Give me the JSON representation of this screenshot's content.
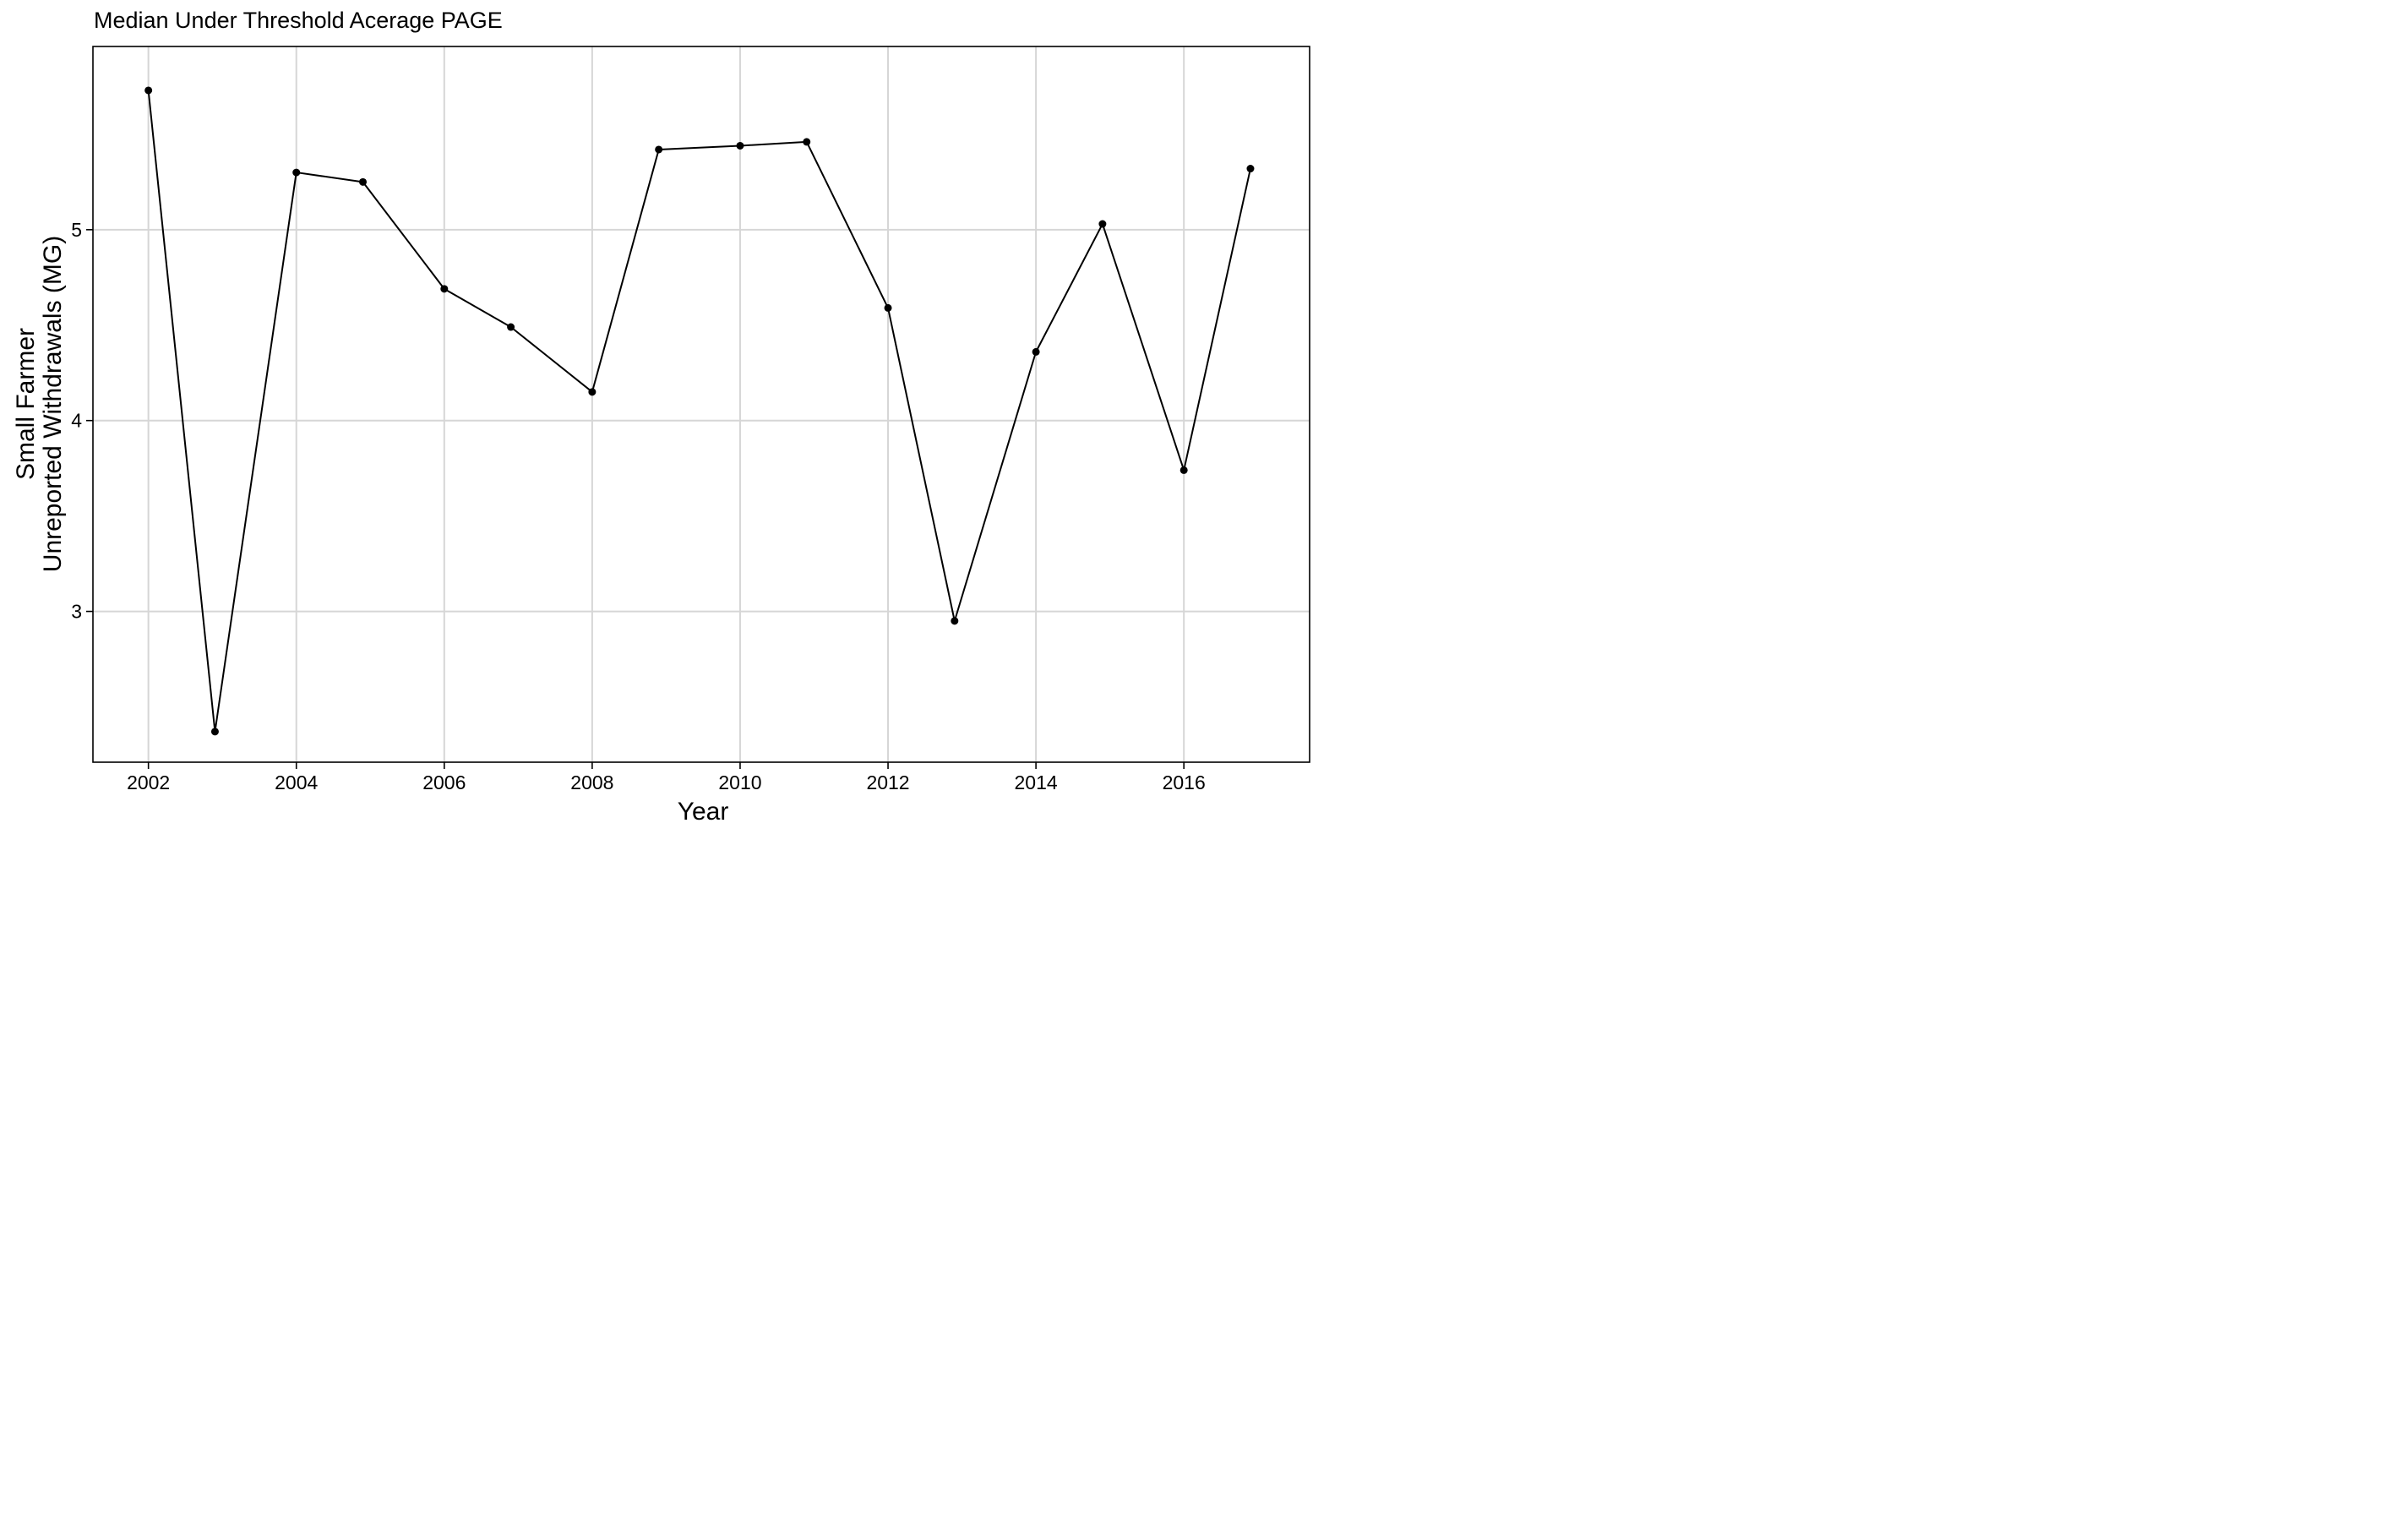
{
  "chart_data": {
    "type": "line",
    "title": "Median Under Threshold Acerage PAGE",
    "xlabel": "Year",
    "ylabel_lines": [
      "Small Farmer",
      "Unreported Withdrawals (MG)"
    ],
    "x_ticks": [
      2002,
      2004,
      2006,
      2008,
      2010,
      2012,
      2014,
      2016
    ],
    "y_ticks": [
      3,
      4,
      5
    ],
    "xlim": [
      2001.25,
      2017.7
    ],
    "ylim": [
      2.21,
      5.96
    ],
    "grid": true,
    "legend": "none",
    "colors": {
      "line": "#000000",
      "point": "#000000",
      "grid": "#d6d6d6",
      "panel_border": "#000000",
      "background": "#ffffff"
    },
    "series": [
      {
        "x": [
          2002,
          2002.9,
          2004,
          2004.9,
          2006,
          2006.9,
          2008,
          2008.9,
          2010,
          2010.9,
          2012,
          2012.9,
          2014,
          2014.9,
          2016,
          2016.9
        ],
        "y": [
          5.73,
          2.37,
          5.3,
          5.25,
          4.69,
          4.49,
          4.15,
          5.42,
          5.44,
          5.46,
          4.59,
          2.95,
          4.36,
          5.03,
          3.74,
          5.32
        ]
      }
    ]
  }
}
